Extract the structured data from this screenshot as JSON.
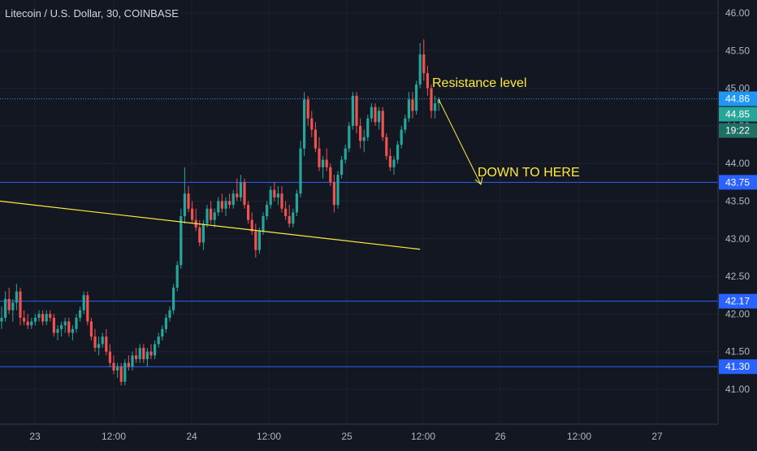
{
  "header": {
    "title": "Litecoin / U.S. Dollar, 30, COINBASE"
  },
  "colors": {
    "background": "#131722",
    "grid": "#1e2230",
    "text": "#b2b5be",
    "up": "#26a69a",
    "down": "#ef5350",
    "level_line": "#2962ff",
    "current_price": "#2196f3",
    "annotation": "#ffeb3b"
  },
  "chart_data": {
    "type": "candlestick",
    "title": "Litecoin / U.S. Dollar, 30, COINBASE",
    "ylim": [
      40.4,
      46.15
    ],
    "y_ticks": [
      "46.00",
      "45.50",
      "45.00",
      "44.50",
      "44.00",
      "43.50",
      "43.00",
      "42.50",
      "42.00",
      "41.50",
      "41.00"
    ],
    "x_ticks": [
      "23",
      "12:00",
      "24",
      "12:00",
      "25",
      "12:00",
      "26",
      "12:00",
      "27"
    ],
    "grid": true,
    "price_labels": [
      {
        "value": "44.86",
        "kind": "current"
      },
      {
        "value": "44.85",
        "kind": "current"
      },
      {
        "value": "19:22",
        "kind": "countdown"
      },
      {
        "value": "43.75",
        "kind": "level"
      },
      {
        "value": "42.17",
        "kind": "level"
      },
      {
        "value": "41.30",
        "kind": "level"
      }
    ],
    "horizontal_levels": [
      44.86,
      43.75,
      42.17,
      41.3
    ],
    "trendline": {
      "from_bar": -4,
      "from_price": 43.52,
      "to_bar": 112,
      "to_price": 42.86
    },
    "annotations": [
      {
        "text": "Resistance level"
      },
      {
        "text": "DOWN TO HERE"
      }
    ],
    "candles": [
      [
        41.9,
        42.1,
        41.8,
        41.95
      ],
      [
        41.95,
        42.3,
        41.9,
        42.2
      ],
      [
        42.2,
        42.35,
        42.0,
        42.05
      ],
      [
        42.05,
        42.2,
        41.9,
        42.15
      ],
      [
        42.15,
        42.4,
        42.05,
        42.3
      ],
      [
        42.3,
        42.35,
        41.85,
        41.95
      ],
      [
        41.95,
        42.05,
        41.85,
        41.9
      ],
      [
        41.9,
        42.0,
        41.8,
        41.85
      ],
      [
        41.85,
        41.95,
        41.8,
        41.9
      ],
      [
        41.9,
        42.0,
        41.85,
        41.95
      ],
      [
        41.95,
        42.05,
        41.9,
        42.0
      ],
      [
        42.0,
        42.05,
        41.85,
        41.9
      ],
      [
        41.9,
        42.05,
        41.85,
        42.0
      ],
      [
        42.0,
        42.05,
        41.9,
        41.95
      ],
      [
        41.95,
        42.0,
        41.7,
        41.75
      ],
      [
        41.75,
        41.85,
        41.65,
        41.8
      ],
      [
        41.8,
        41.9,
        41.7,
        41.85
      ],
      [
        41.85,
        41.95,
        41.75,
        41.9
      ],
      [
        41.9,
        41.95,
        41.7,
        41.75
      ],
      [
        41.75,
        41.85,
        41.65,
        41.8
      ],
      [
        41.8,
        42.0,
        41.75,
        41.95
      ],
      [
        41.95,
        42.1,
        41.9,
        42.05
      ],
      [
        42.05,
        42.3,
        42.0,
        42.25
      ],
      [
        42.25,
        42.3,
        41.85,
        41.9
      ],
      [
        41.9,
        41.95,
        41.65,
        41.7
      ],
      [
        41.7,
        41.8,
        41.5,
        41.55
      ],
      [
        41.55,
        41.7,
        41.45,
        41.6
      ],
      [
        41.6,
        41.75,
        41.55,
        41.7
      ],
      [
        41.7,
        41.8,
        41.45,
        41.5
      ],
      [
        41.5,
        41.6,
        41.3,
        41.35
      ],
      [
        41.35,
        41.45,
        41.2,
        41.25
      ],
      [
        41.25,
        41.35,
        41.15,
        41.3
      ],
      [
        41.3,
        41.35,
        41.05,
        41.1
      ],
      [
        41.1,
        41.4,
        41.05,
        41.35
      ],
      [
        41.35,
        41.45,
        41.25,
        41.3
      ],
      [
        41.3,
        41.5,
        41.25,
        41.45
      ],
      [
        41.45,
        41.55,
        41.35,
        41.4
      ],
      [
        41.4,
        41.6,
        41.35,
        41.55
      ],
      [
        41.55,
        41.6,
        41.35,
        41.4
      ],
      [
        41.4,
        41.55,
        41.3,
        41.5
      ],
      [
        41.5,
        41.6,
        41.4,
        41.45
      ],
      [
        41.45,
        41.65,
        41.4,
        41.6
      ],
      [
        41.6,
        41.75,
        41.55,
        41.7
      ],
      [
        41.7,
        41.85,
        41.65,
        41.8
      ],
      [
        41.8,
        42.0,
        41.75,
        41.95
      ],
      [
        41.95,
        42.1,
        41.9,
        42.05
      ],
      [
        42.05,
        42.4,
        42.0,
        42.35
      ],
      [
        42.35,
        42.7,
        42.3,
        42.65
      ],
      [
        42.65,
        43.4,
        42.6,
        43.3
      ],
      [
        43.3,
        43.95,
        43.2,
        43.6
      ],
      [
        43.6,
        43.7,
        43.35,
        43.4
      ],
      [
        43.4,
        43.5,
        43.2,
        43.25
      ],
      [
        43.25,
        43.4,
        43.1,
        43.15
      ],
      [
        43.15,
        43.25,
        42.9,
        42.95
      ],
      [
        42.95,
        43.25,
        42.85,
        43.2
      ],
      [
        43.2,
        43.45,
        43.15,
        43.4
      ],
      [
        43.4,
        43.5,
        43.2,
        43.25
      ],
      [
        43.25,
        43.4,
        43.15,
        43.35
      ],
      [
        43.35,
        43.55,
        43.3,
        43.5
      ],
      [
        43.5,
        43.6,
        43.35,
        43.4
      ],
      [
        43.4,
        43.55,
        43.3,
        43.5
      ],
      [
        43.5,
        43.6,
        43.4,
        43.45
      ],
      [
        43.45,
        43.65,
        43.4,
        43.6
      ],
      [
        43.6,
        43.8,
        43.5,
        43.55
      ],
      [
        43.55,
        43.85,
        43.5,
        43.75
      ],
      [
        43.75,
        43.8,
        43.4,
        43.45
      ],
      [
        43.45,
        43.5,
        43.2,
        43.25
      ],
      [
        43.25,
        43.35,
        43.05,
        43.1
      ],
      [
        43.1,
        43.2,
        42.75,
        42.85
      ],
      [
        42.85,
        43.15,
        42.8,
        43.1
      ],
      [
        43.1,
        43.35,
        43.05,
        43.3
      ],
      [
        43.3,
        43.5,
        43.25,
        43.45
      ],
      [
        43.45,
        43.7,
        43.4,
        43.65
      ],
      [
        43.65,
        43.75,
        43.5,
        43.55
      ],
      [
        43.55,
        43.7,
        43.45,
        43.6
      ],
      [
        43.6,
        43.7,
        43.35,
        43.4
      ],
      [
        43.4,
        43.5,
        43.25,
        43.3
      ],
      [
        43.3,
        43.45,
        43.15,
        43.2
      ],
      [
        43.2,
        43.4,
        43.15,
        43.35
      ],
      [
        43.35,
        43.65,
        43.3,
        43.6
      ],
      [
        43.6,
        44.3,
        43.55,
        44.2
      ],
      [
        44.2,
        44.95,
        44.1,
        44.85
      ],
      [
        44.85,
        44.9,
        44.5,
        44.6
      ],
      [
        44.6,
        44.7,
        44.35,
        44.45
      ],
      [
        44.45,
        44.55,
        44.15,
        44.2
      ],
      [
        44.2,
        44.35,
        43.9,
        43.95
      ],
      [
        43.95,
        44.1,
        43.8,
        44.05
      ],
      [
        44.05,
        44.2,
        43.9,
        43.95
      ],
      [
        43.95,
        44.0,
        43.7,
        43.75
      ],
      [
        43.75,
        43.85,
        43.35,
        43.45
      ],
      [
        43.45,
        43.9,
        43.4,
        43.85
      ],
      [
        43.85,
        44.1,
        43.8,
        44.05
      ],
      [
        44.05,
        44.25,
        44.0,
        44.2
      ],
      [
        44.2,
        44.55,
        44.15,
        44.5
      ],
      [
        44.5,
        44.95,
        44.45,
        44.9
      ],
      [
        44.9,
        44.95,
        44.4,
        44.5
      ],
      [
        44.5,
        44.6,
        44.2,
        44.3
      ],
      [
        44.3,
        44.45,
        44.15,
        44.35
      ],
      [
        44.35,
        44.65,
        44.3,
        44.6
      ],
      [
        44.6,
        44.8,
        44.55,
        44.75
      ],
      [
        44.75,
        44.8,
        44.5,
        44.55
      ],
      [
        44.55,
        44.75,
        44.45,
        44.7
      ],
      [
        44.7,
        44.75,
        44.3,
        44.35
      ],
      [
        44.35,
        44.4,
        44.05,
        44.1
      ],
      [
        44.1,
        44.2,
        43.9,
        43.95
      ],
      [
        43.95,
        44.1,
        43.85,
        44.05
      ],
      [
        44.05,
        44.3,
        44.0,
        44.25
      ],
      [
        44.25,
        44.5,
        44.2,
        44.45
      ],
      [
        44.45,
        44.65,
        44.4,
        44.6
      ],
      [
        44.6,
        44.95,
        44.55,
        44.85
      ],
      [
        44.85,
        44.95,
        44.6,
        44.7
      ],
      [
        44.7,
        45.1,
        44.65,
        45.05
      ],
      [
        45.05,
        45.6,
        45.0,
        45.45
      ],
      [
        45.45,
        45.65,
        45.1,
        45.2
      ],
      [
        45.2,
        45.3,
        44.9,
        45.0
      ],
      [
        45.0,
        45.05,
        44.6,
        44.7
      ],
      [
        44.7,
        44.9,
        44.6,
        44.8
      ],
      [
        44.8,
        44.88,
        44.7,
        44.85
      ]
    ]
  }
}
